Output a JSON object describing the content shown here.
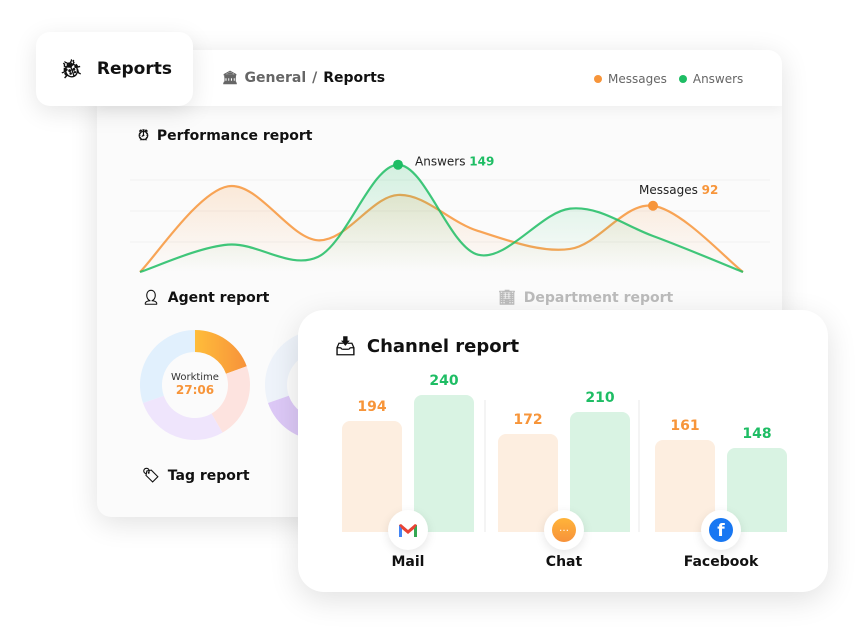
{
  "tab": {
    "title": "Reports",
    "icon": "bug-icon"
  },
  "breadcrumb": {
    "parent": "General",
    "separator": "/",
    "current": "Reports"
  },
  "legend": [
    {
      "label": "Messages",
      "color": "#f7953a"
    },
    {
      "label": "Answers",
      "color": "#1ebd64"
    }
  ],
  "performance": {
    "title": "Performance report",
    "chart_data": {
      "type": "area",
      "series": [
        {
          "name": "Messages",
          "color": "#f7953a",
          "values": [
            0,
            119,
            44,
            107,
            57,
            32,
            92,
            0
          ]
        },
        {
          "name": "Answers",
          "color": "#1ebd64",
          "values": [
            0,
            38,
            21,
            149,
            24,
            88,
            50,
            0
          ]
        }
      ],
      "annotations": [
        {
          "series": "Answers",
          "index": 3,
          "label": "Answers",
          "value": "149"
        },
        {
          "series": "Messages",
          "index": 6,
          "label": "Messages",
          "value": "92"
        }
      ],
      "grid": true
    }
  },
  "agent": {
    "title": "Agent report",
    "center_label": "Worktime",
    "center_value": "27:06"
  },
  "department": {
    "title": "Department report"
  },
  "tag": {
    "title": "Tag report"
  },
  "channel": {
    "title": "Channel report",
    "chart_data": {
      "type": "bar",
      "categories": [
        "Mail",
        "Chat",
        "Facebook"
      ],
      "series": [
        {
          "color": "#f7953a",
          "values": [
            194,
            172,
            161
          ]
        },
        {
          "color": "#1ebd64",
          "values": [
            240,
            210,
            148
          ]
        }
      ]
    }
  }
}
